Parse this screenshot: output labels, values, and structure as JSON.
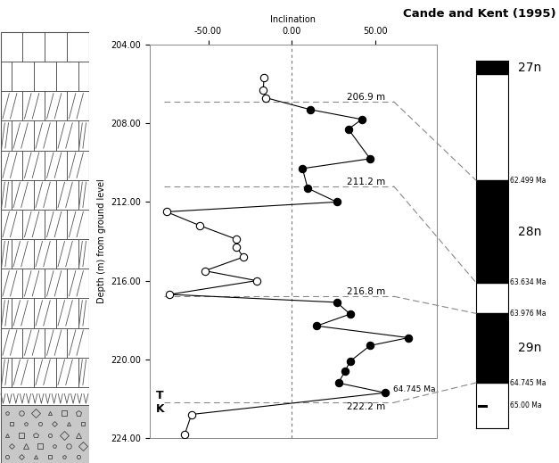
{
  "chart_data": {
    "type": "scatter",
    "x_label": "Inclination",
    "y_label": "Depth (m) from ground level",
    "xlim": [
      -85,
      87
    ],
    "xticks": [
      {
        "value": -50,
        "label": "-50.00"
      },
      {
        "value": 0,
        "label": "0.00"
      },
      {
        "value": 50,
        "label": "50.00"
      }
    ],
    "ylim": [
      224,
      204
    ],
    "yticks": [
      {
        "value": 204,
        "label": "204.00"
      },
      {
        "value": 208,
        "label": "208.00"
      },
      {
        "value": 212,
        "label": "212.00"
      },
      {
        "value": 216,
        "label": "216.00"
      },
      {
        "value": 220,
        "label": "220.00"
      },
      {
        "value": 224,
        "label": "224.00"
      }
    ],
    "color": "#000000",
    "marker": "circle",
    "line_style": "solid",
    "reference_x": 0,
    "points": {
      "inclination": [
        -16.6,
        -17,
        -15.5,
        11,
        42,
        34,
        47,
        6.5,
        9.6,
        27,
        -75,
        -55,
        -33,
        -33,
        -29,
        -52,
        -21,
        -73,
        27,
        35,
        15,
        70,
        47,
        35,
        32,
        28,
        56,
        -60,
        -64
      ],
      "depth": [
        205.7,
        206.3,
        206.7,
        207.3,
        207.8,
        208.3,
        209.8,
        210.3,
        211.3,
        212.0,
        212.5,
        213.2,
        213.9,
        214.3,
        214.8,
        215.5,
        216.0,
        216.7,
        217.1,
        217.7,
        218.3,
        218.9,
        219.3,
        220.1,
        220.6,
        221.2,
        221.7,
        222.8,
        223.8
      ],
      "filled": [
        false,
        false,
        false,
        true,
        true,
        true,
        true,
        true,
        true,
        true,
        false,
        false,
        false,
        false,
        false,
        false,
        false,
        false,
        true,
        true,
        true,
        true,
        true,
        true,
        true,
        true,
        true,
        false,
        false
      ]
    },
    "boundaries": [
      {
        "depth": 206.9,
        "label": "206.9 m"
      },
      {
        "depth": 211.2,
        "label": "211.2 m"
      },
      {
        "depth": 216.8,
        "label": "216.8 m"
      },
      {
        "depth": 222.2,
        "label": "222.2 m"
      }
    ],
    "boundary_labels": {
      "upper": "T",
      "lower": "K",
      "age_label": "64.745 Ma"
    },
    "timescale": {
      "title": "Cande and Kent (1995)",
      "range": [
        61.17,
        65.25
      ],
      "chrons": [
        {
          "name": "27n",
          "top": 61.17,
          "base": 61.32
        },
        {
          "name": "28n",
          "top": 62.499,
          "base": 63.634
        },
        {
          "name": "29n",
          "top": 63.976,
          "base": 64.745
        }
      ],
      "age_labels": [
        {
          "value": 62.499,
          "label": "62.499 Ma"
        },
        {
          "value": 63.634,
          "label": "63.634 Ma"
        },
        {
          "value": 63.976,
          "label": "63.976 Ma"
        },
        {
          "value": 64.745,
          "label": "64.745 Ma"
        },
        {
          "value": 65.0,
          "label": "65.00 Ma"
        }
      ],
      "correlations": [
        [
          206.9,
          62.499
        ],
        [
          211.2,
          63.634
        ],
        [
          216.8,
          63.976
        ],
        [
          222.2,
          64.745
        ]
      ]
    }
  }
}
